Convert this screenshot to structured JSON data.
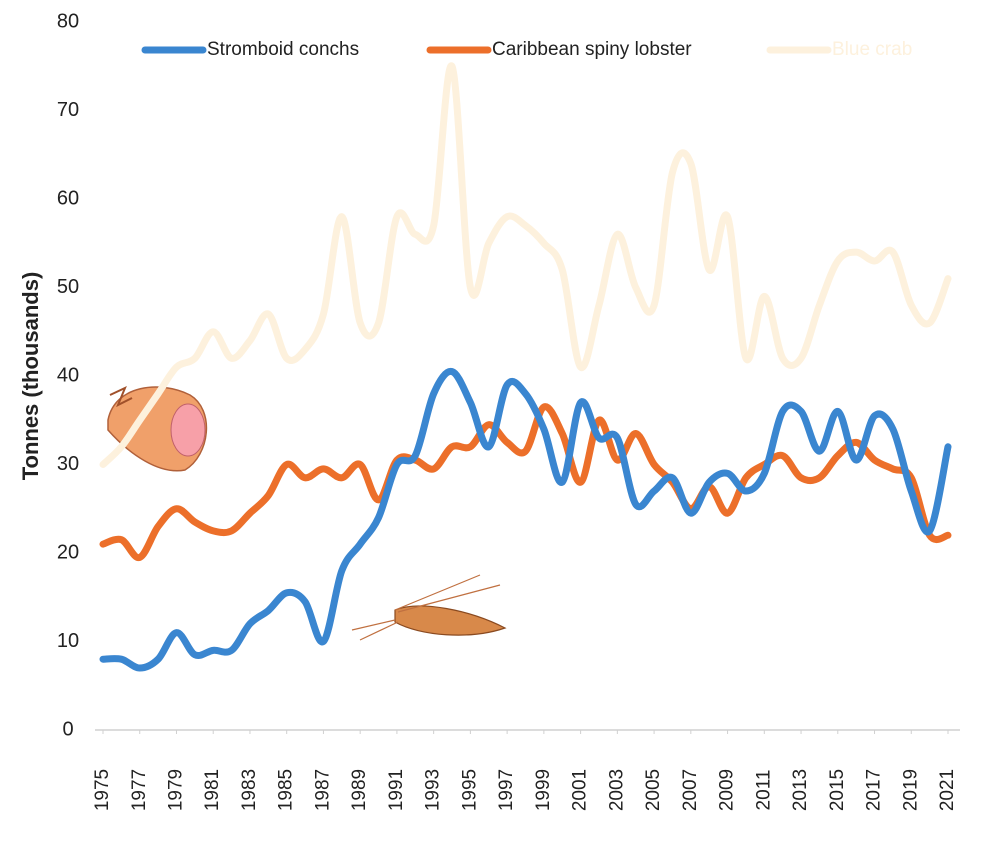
{
  "chart_data": {
    "type": "line",
    "y_label": "Tonnes (thousands)",
    "x": [
      1975,
      1976,
      1977,
      1978,
      1979,
      1980,
      1981,
      1982,
      1983,
      1984,
      1985,
      1986,
      1987,
      1988,
      1989,
      1990,
      1991,
      1992,
      1993,
      1994,
      1995,
      1996,
      1997,
      1998,
      1999,
      2000,
      2001,
      2002,
      2003,
      2004,
      2005,
      2006,
      2007,
      2008,
      2009,
      2010,
      2011,
      2012,
      2013,
      2014,
      2015,
      2016,
      2017,
      2018,
      2019,
      2020,
      2021
    ],
    "xlim": [
      1975,
      2021
    ],
    "xticks": [
      1975,
      1977,
      1979,
      1981,
      1983,
      1985,
      1987,
      1989,
      1991,
      1993,
      1995,
      1997,
      1999,
      2001,
      2003,
      2005,
      2007,
      2009,
      2011,
      2013,
      2015,
      2017,
      2019,
      2021
    ],
    "ylim": [
      0,
      80
    ],
    "yticks": [
      0,
      10,
      20,
      30,
      40,
      50,
      60,
      70,
      80
    ],
    "legend": "top",
    "series": [
      {
        "name": "Stromboid conchs",
        "color": "#3a86d0",
        "values": [
          8,
          8,
          7,
          8,
          11,
          8.5,
          9,
          9,
          12,
          13.5,
          15.5,
          14.5,
          10,
          18,
          21,
          24,
          30,
          31,
          38,
          40.5,
          37,
          32,
          39,
          38,
          34,
          28,
          37,
          33,
          33,
          25.5,
          27,
          28.5,
          24.5,
          28,
          29,
          27,
          29,
          36,
          36,
          31.5,
          36,
          30.5,
          35.5,
          34,
          27,
          22.5,
          32
        ]
      },
      {
        "name": "Caribbean spiny lobster",
        "color": "#ec6f2a",
        "values": [
          21,
          21.5,
          19.5,
          23,
          25,
          23.5,
          22.5,
          22.5,
          24.5,
          26.5,
          30,
          28.5,
          29.5,
          28.5,
          30,
          26,
          30.5,
          30.5,
          29.5,
          32,
          32,
          34.5,
          32.5,
          31.5,
          36.5,
          33.5,
          28,
          35,
          30.5,
          33.5,
          30,
          28,
          25,
          27.5,
          24.5,
          28.5,
          30,
          31,
          28.5,
          28.5,
          31,
          32.5,
          30.5,
          29.5,
          28.5,
          22,
          22
        ]
      },
      {
        "name": "Blue crab",
        "color": "#fdf1dd",
        "values": [
          30,
          32,
          35,
          38,
          41,
          42,
          45,
          42,
          44,
          47,
          42,
          43,
          47,
          58,
          46,
          46,
          58,
          56,
          57,
          75,
          50,
          55,
          58,
          57,
          55,
          52,
          41,
          48,
          56,
          50,
          48,
          63,
          64,
          52,
          58,
          42,
          49,
          42,
          42,
          48,
          53,
          54,
          53,
          54,
          48,
          46,
          51
        ]
      }
    ]
  }
}
